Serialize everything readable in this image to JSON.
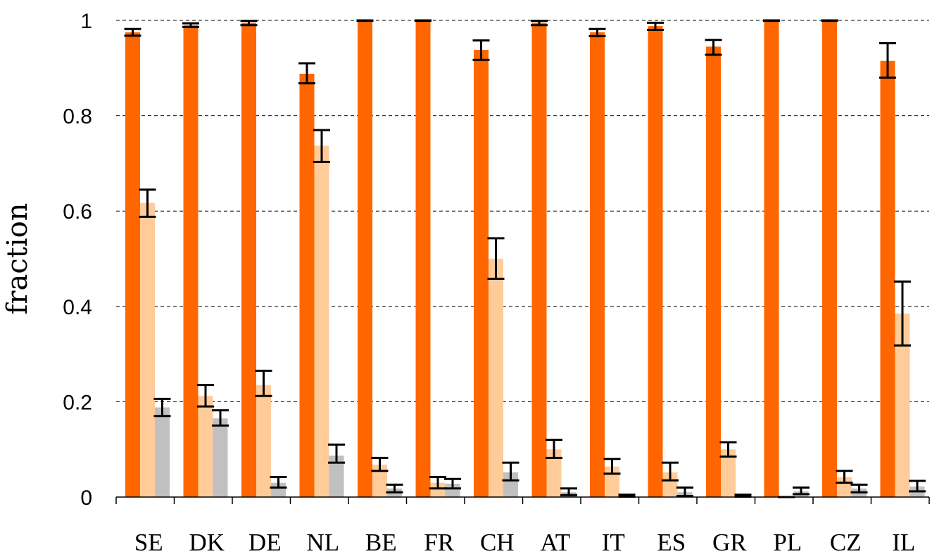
{
  "chart_data": {
    "type": "bar",
    "title": "",
    "xlabel": "",
    "ylabel": "fraction",
    "ylim": [
      0,
      1
    ],
    "yticks": [
      "0",
      "0.2",
      "0.4",
      "0.6",
      "0.8",
      "1"
    ],
    "grid": "horizontal dashed",
    "categories": [
      "SE",
      "DK",
      "DE",
      "NL",
      "BE",
      "FR",
      "CH",
      "AT",
      "IT",
      "ES",
      "GR",
      "PL",
      "CZ",
      "IL"
    ],
    "series": [
      {
        "color": "#ff6600",
        "values": [
          0.975,
          0.99,
          0.995,
          0.888,
          1.0,
          1.0,
          0.938,
          0.995,
          0.975,
          0.988,
          0.945,
          1.0,
          1.0,
          0.915
        ],
        "error_low": [
          0.968,
          0.986,
          0.99,
          0.868,
          0.999,
          0.999,
          0.917,
          0.99,
          0.967,
          0.98,
          0.928,
          0.999,
          0.999,
          0.88
        ],
        "error_high": [
          0.982,
          0.994,
          0.999,
          0.91,
          1.0,
          1.0,
          0.958,
          0.999,
          0.982,
          0.995,
          0.959,
          1.0,
          1.0,
          0.952
        ]
      },
      {
        "color": "#ffcc99",
        "values": [
          0.617,
          0.212,
          0.235,
          0.737,
          0.068,
          0.03,
          0.5,
          0.1,
          0.064,
          0.052,
          0.1,
          0.0,
          0.042,
          0.385
        ],
        "error_low": [
          0.588,
          0.19,
          0.212,
          0.703,
          0.055,
          0.018,
          0.458,
          0.082,
          0.049,
          0.035,
          0.085,
          0.0,
          0.03,
          0.318
        ],
        "error_high": [
          0.645,
          0.235,
          0.265,
          0.77,
          0.082,
          0.042,
          0.543,
          0.12,
          0.08,
          0.072,
          0.115,
          0.0,
          0.055,
          0.452
        ]
      },
      {
        "color": "#c0c0c0",
        "values": [
          0.188,
          0.165,
          0.03,
          0.087,
          0.018,
          0.028,
          0.052,
          0.01,
          0.003,
          0.01,
          0.003,
          0.012,
          0.018,
          0.022
        ],
        "error_low": [
          0.17,
          0.15,
          0.02,
          0.072,
          0.01,
          0.018,
          0.035,
          0.004,
          0.001,
          0.002,
          0.001,
          0.006,
          0.01,
          0.012
        ],
        "error_high": [
          0.206,
          0.182,
          0.042,
          0.11,
          0.026,
          0.038,
          0.072,
          0.018,
          0.005,
          0.02,
          0.005,
          0.02,
          0.026,
          0.034
        ]
      }
    ]
  }
}
